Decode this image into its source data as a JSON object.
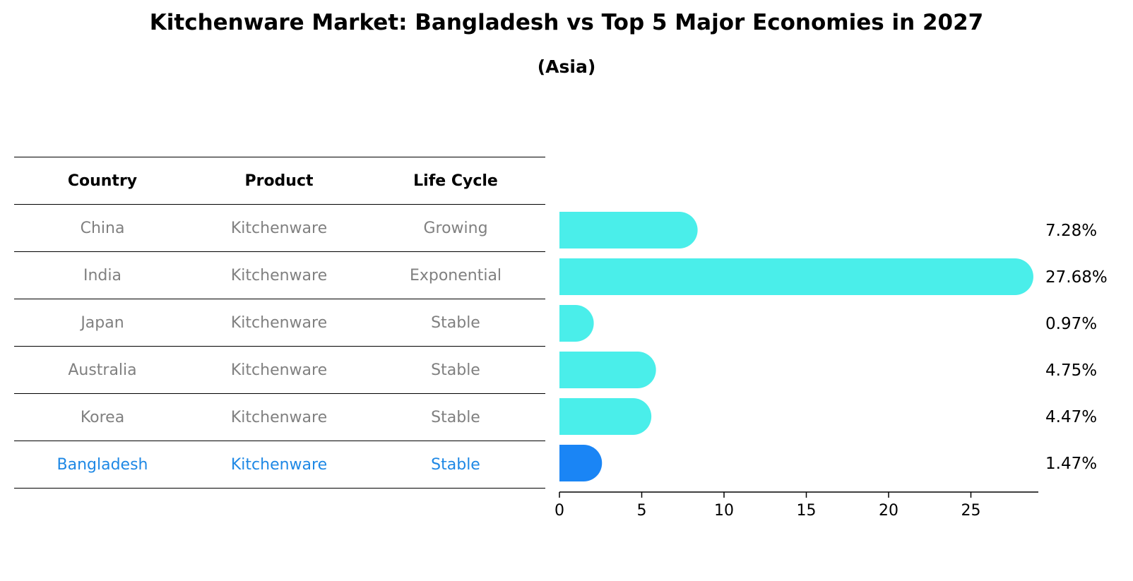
{
  "title": "Kitchenware Market: Bangladesh vs Top 5 Major Economies in 2027",
  "subtitle": "(Asia)",
  "colors": {
    "bar": "#4aeeea",
    "highlight": "#1a85f5",
    "muted_text": "#808080",
    "highlight_text": "#1e88e5"
  },
  "table": {
    "headers": [
      "Country",
      "Product",
      "Life Cycle"
    ],
    "rows": [
      [
        "China",
        "Kitchenware",
        "Growing"
      ],
      [
        "India",
        "Kitchenware",
        "Exponential"
      ],
      [
        "Japan",
        "Kitchenware",
        "Stable"
      ],
      [
        "Australia",
        "Kitchenware",
        "Stable"
      ],
      [
        "Korea",
        "Kitchenware",
        "Stable"
      ],
      [
        "Bangladesh",
        "Kitchenware",
        "Stable"
      ]
    ]
  },
  "chart_data": {
    "type": "bar",
    "orientation": "horizontal",
    "categories": [
      "China",
      "India",
      "Japan",
      "Australia",
      "Korea",
      "Bangladesh"
    ],
    "values": [
      7.28,
      27.68,
      0.97,
      4.75,
      4.47,
      1.47
    ],
    "labels": [
      "7.28%",
      "27.68%",
      "0.97%",
      "4.75%",
      "4.47%",
      "1.47%"
    ],
    "highlight": "Bangladesh",
    "xticks": [
      0,
      5,
      10,
      15,
      20,
      25
    ],
    "xlim": [
      0,
      29
    ]
  }
}
